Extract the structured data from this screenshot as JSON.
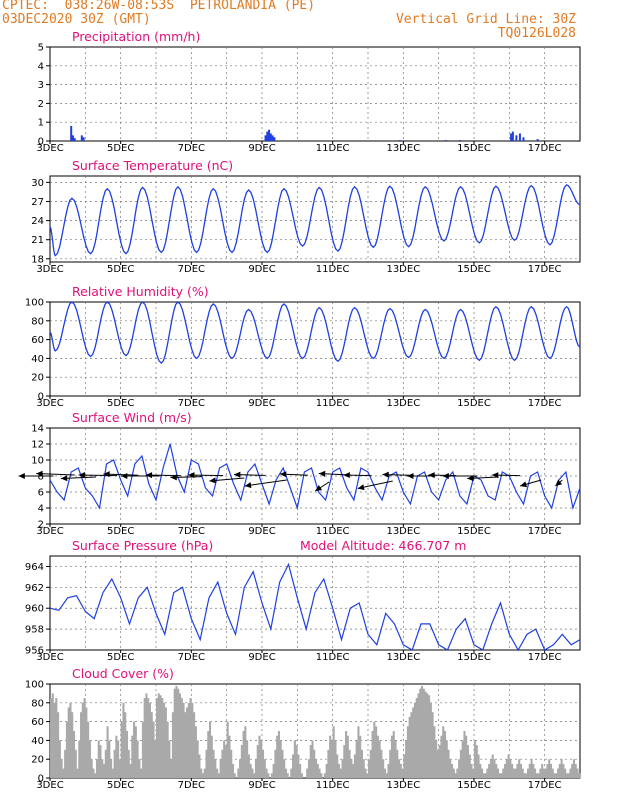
{
  "header": {
    "line1": "CPTEC:  038:26W-08:53S  PETROLANDIA (PE)",
    "line2": "03DEC2020 30Z (GMT)",
    "right1": "Vertical Grid Line: 30Z",
    "right2": "TQ0126L028"
  },
  "colors": {
    "title": "#e0107a",
    "header": "#e07b24",
    "line": "#1f3fe0",
    "cloud": "#a9a9a9"
  },
  "x_axis": {
    "ticks": [
      "3DEC",
      "5DEC",
      "7DEC",
      "9DEC",
      "11DEC",
      "13DEC",
      "15DEC",
      "17DEC"
    ],
    "tick_days": [
      3,
      5,
      7,
      9,
      11,
      13,
      15,
      17
    ],
    "range_days": [
      3,
      18.0
    ]
  },
  "chart_data": [
    {
      "type": "bar",
      "title": "Precipitation (mm/h)",
      "ylim": [
        0,
        5
      ],
      "yticks": [
        0,
        1,
        2,
        3,
        4,
        5
      ],
      "events": [
        {
          "day": 3.6,
          "value": 0.8
        },
        {
          "day": 3.65,
          "value": 0.3
        },
        {
          "day": 3.7,
          "value": 0.15
        },
        {
          "day": 3.9,
          "value": 0.3
        },
        {
          "day": 3.95,
          "value": 0.2
        },
        {
          "day": 9.1,
          "value": 0.3
        },
        {
          "day": 9.15,
          "value": 0.5
        },
        {
          "day": 9.2,
          "value": 0.6
        },
        {
          "day": 9.25,
          "value": 0.4
        },
        {
          "day": 9.3,
          "value": 0.3
        },
        {
          "day": 9.35,
          "value": 0.2
        },
        {
          "day": 12.9,
          "value": 0.05
        },
        {
          "day": 14.2,
          "value": 0.05
        },
        {
          "day": 14.6,
          "value": 0.05
        },
        {
          "day": 16.05,
          "value": 0.4
        },
        {
          "day": 16.1,
          "value": 0.5
        },
        {
          "day": 16.2,
          "value": 0.3
        },
        {
          "day": 16.3,
          "value": 0.4
        },
        {
          "day": 16.4,
          "value": 0.2
        },
        {
          "day": 16.8,
          "value": 0.1
        }
      ]
    },
    {
      "type": "line",
      "title": "Surface Temperature (nC)",
      "ylim": [
        17.5,
        31
      ],
      "yticks": [
        18,
        21,
        24,
        27,
        30
      ],
      "peaks": [
        27.5,
        29.0,
        29.2,
        29.3,
        29.0,
        28.8,
        29.0,
        29.2,
        29.3,
        29.4,
        29.3,
        29.3,
        29.4,
        29.5,
        29.6
      ],
      "troughs": [
        18.5,
        18.8,
        18.8,
        19.0,
        19.0,
        19.0,
        19.0,
        20.0,
        19.2,
        19.8,
        19.9,
        20.8,
        20.5,
        20.9,
        20.2
      ],
      "start_value": 23.0,
      "end_value": 26.5
    },
    {
      "type": "line",
      "title": "Relative Humidity (%)",
      "ylim": [
        0,
        100
      ],
      "yticks": [
        0,
        20,
        40,
        60,
        80,
        100
      ],
      "peaks": [
        100,
        100,
        100,
        100,
        98,
        92,
        98,
        94,
        94,
        93,
        92,
        92,
        95,
        95,
        95
      ],
      "troughs": [
        48,
        42,
        43,
        35,
        40,
        40,
        40,
        40,
        37,
        40,
        41,
        40,
        38,
        38,
        40
      ],
      "start_value": 68,
      "end_value": 52
    },
    {
      "type": "line",
      "title": "Surface Wind (m/s)",
      "ylim": [
        2,
        14
      ],
      "yticks": [
        2,
        4,
        6,
        8,
        10,
        12,
        14
      ],
      "x": [
        3.0,
        3.2,
        3.4,
        3.6,
        3.8,
        4.0,
        4.2,
        4.4,
        4.6,
        4.8,
        5.0,
        5.2,
        5.4,
        5.6,
        5.8,
        6.0,
        6.2,
        6.4,
        6.6,
        6.8,
        7.0,
        7.2,
        7.4,
        7.6,
        7.8,
        8.0,
        8.2,
        8.4,
        8.6,
        8.8,
        9.0,
        9.2,
        9.4,
        9.6,
        9.8,
        10.0,
        10.2,
        10.4,
        10.6,
        10.8,
        11.0,
        11.2,
        11.4,
        11.6,
        11.8,
        12.0,
        12.2,
        12.4,
        12.6,
        12.8,
        13.0,
        13.2,
        13.4,
        13.6,
        13.8,
        14.0,
        14.2,
        14.4,
        14.6,
        14.8,
        15.0,
        15.2,
        15.4,
        15.6,
        15.8,
        16.0,
        16.2,
        16.4,
        16.6,
        16.8,
        17.0,
        17.2,
        17.4,
        17.6,
        17.8,
        18.0
      ],
      "values": [
        7.5,
        6.0,
        5.0,
        8.5,
        9.0,
        6.5,
        5.5,
        4.0,
        9.5,
        10.0,
        7.5,
        5.5,
        9.5,
        10.5,
        7.0,
        5.0,
        9.0,
        12.0,
        8.0,
        6.0,
        10.0,
        9.5,
        6.5,
        5.5,
        9.0,
        9.5,
        7.0,
        5.0,
        8.5,
        9.5,
        7.0,
        4.5,
        7.5,
        9.0,
        6.5,
        4.0,
        8.5,
        9.0,
        6.0,
        5.0,
        8.5,
        9.0,
        6.5,
        5.0,
        9.0,
        8.5,
        6.5,
        5.0,
        8.0,
        8.5,
        6.0,
        4.5,
        8.0,
        8.5,
        6.0,
        5.0,
        7.5,
        8.5,
        5.5,
        4.5,
        8.0,
        7.5,
        5.5,
        5.0,
        8.5,
        8.0,
        6.0,
        4.5,
        8.0,
        8.5,
        5.5,
        4.0,
        7.5,
        8.5,
        4.0,
        6.5
      ],
      "arrows": [
        {
          "day": 3.1,
          "dx": -0.5,
          "dy": 0.0
        },
        {
          "day": 3.7,
          "dx": -0.55,
          "dy": 0.05
        },
        {
          "day": 4.3,
          "dx": -0.5,
          "dy": -0.05
        },
        {
          "day": 4.9,
          "dx": -0.55,
          "dy": 0.02
        },
        {
          "day": 5.5,
          "dx": -0.5,
          "dy": 0.04
        },
        {
          "day": 6.1,
          "dx": -0.55,
          "dy": 0.0
        },
        {
          "day": 6.7,
          "dx": -0.5,
          "dy": 0.02
        },
        {
          "day": 7.3,
          "dx": -0.45,
          "dy": -0.03
        },
        {
          "day": 7.9,
          "dx": -0.5,
          "dy": 0.02
        },
        {
          "day": 8.5,
          "dx": -0.5,
          "dy": -0.1
        },
        {
          "day": 9.1,
          "dx": -0.45,
          "dy": 0.03
        },
        {
          "day": 9.7,
          "dx": -0.6,
          "dy": -0.2
        },
        {
          "day": 10.3,
          "dx": -0.4,
          "dy": 0.04
        },
        {
          "day": 10.9,
          "dx": -0.2,
          "dy": -0.3
        },
        {
          "day": 11.5,
          "dx": -0.45,
          "dy": 0.05
        },
        {
          "day": 12.1,
          "dx": -0.4,
          "dy": 0.02
        },
        {
          "day": 12.7,
          "dx": -0.5,
          "dy": -0.25
        },
        {
          "day": 13.3,
          "dx": -0.45,
          "dy": 0.03
        },
        {
          "day": 13.9,
          "dx": -0.4,
          "dy": 0.0
        },
        {
          "day": 14.5,
          "dx": -0.4,
          "dy": 0.02
        },
        {
          "day": 15.1,
          "dx": -0.5,
          "dy": 0.0
        },
        {
          "day": 15.7,
          "dx": -0.45,
          "dy": -0.05
        },
        {
          "day": 16.3,
          "dx": -0.4,
          "dy": 0.02
        },
        {
          "day": 16.9,
          "dx": -0.3,
          "dy": -0.2
        },
        {
          "day": 17.5,
          "dx": -0.1,
          "dy": -0.2
        }
      ]
    },
    {
      "type": "line",
      "title": "Surface Pressure (hPa)",
      "subtitle": "Model Altitude: 466.707 m",
      "ylim": [
        956,
        965
      ],
      "yticks": [
        956,
        958,
        960,
        962,
        964
      ],
      "x": [
        3.0,
        3.25,
        3.5,
        3.75,
        4.0,
        4.25,
        4.5,
        4.75,
        5.0,
        5.25,
        5.5,
        5.75,
        6.0,
        6.25,
        6.5,
        6.75,
        7.0,
        7.25,
        7.5,
        7.75,
        8.0,
        8.25,
        8.5,
        8.75,
        9.0,
        9.25,
        9.5,
        9.75,
        10.0,
        10.25,
        10.5,
        10.75,
        11.0,
        11.25,
        11.5,
        11.75,
        12.0,
        12.25,
        12.5,
        12.75,
        13.0,
        13.25,
        13.5,
        13.75,
        14.0,
        14.25,
        14.5,
        14.75,
        15.0,
        15.25,
        15.5,
        15.75,
        16.0,
        16.25,
        16.5,
        16.75,
        17.0,
        17.25,
        17.5,
        17.75,
        18.0
      ],
      "values": [
        960.0,
        959.8,
        961.0,
        961.2,
        959.7,
        959.0,
        961.5,
        962.8,
        961.0,
        958.5,
        961.0,
        962.0,
        959.5,
        957.5,
        961.5,
        962.0,
        959.0,
        957.0,
        961.0,
        962.5,
        959.5,
        957.5,
        962.0,
        963.5,
        960.5,
        958.0,
        962.5,
        964.2,
        961.0,
        958.0,
        961.5,
        962.8,
        960.0,
        957.0,
        960.0,
        960.5,
        957.5,
        956.5,
        959.5,
        958.5,
        956.5,
        956.0,
        958.5,
        958.5,
        956.5,
        956.0,
        958.0,
        959.0,
        956.5,
        956.0,
        958.5,
        960.5,
        957.5,
        956.0,
        957.5,
        958.0,
        956.0,
        956.5,
        957.5,
        956.5,
        957.0
      ]
    },
    {
      "type": "bar",
      "title": "Cloud Cover (%)",
      "ylim": [
        0,
        100
      ],
      "yticks": [
        0,
        20,
        40,
        60,
        80,
        100
      ],
      "day_levels": [
        [
          85,
          90,
          80,
          85,
          70,
          40,
          20,
          10,
          30,
          60,
          75,
          80,
          70,
          50,
          30,
          10,
          40,
          70,
          80,
          85
        ],
        [
          75,
          60,
          40,
          20,
          10,
          5,
          20,
          40,
          35,
          20,
          15,
          30,
          55,
          40,
          20,
          10,
          30,
          45,
          40,
          20
        ],
        [
          60,
          80,
          70,
          50,
          30,
          15,
          45,
          60,
          55,
          40,
          20,
          10,
          60,
          85,
          90,
          85,
          80,
          70,
          60,
          40
        ],
        [
          85,
          90,
          88,
          85,
          80,
          75,
          60,
          40,
          20,
          70,
          95,
          98,
          95,
          90,
          85,
          80,
          70,
          75,
          80,
          85
        ],
        [
          80,
          70,
          55,
          40,
          25,
          10,
          5,
          10,
          30,
          50,
          60,
          45,
          30,
          20,
          10,
          5,
          20,
          30,
          40,
          35
        ],
        [
          60,
          45,
          30,
          15,
          5,
          0,
          10,
          20,
          35,
          50,
          55,
          40,
          25,
          15,
          10,
          5,
          20,
          35,
          45,
          40
        ],
        [
          30,
          20,
          10,
          5,
          0,
          5,
          15,
          30,
          45,
          50,
          40,
          30,
          20,
          10,
          5,
          0,
          10,
          25,
          40,
          35
        ],
        [
          25,
          15,
          5,
          0,
          0,
          10,
          20,
          35,
          40,
          30,
          20,
          15,
          10,
          5,
          0,
          5,
          15,
          30,
          45,
          40
        ],
        [
          55,
          40,
          25,
          15,
          10,
          20,
          35,
          50,
          45,
          30,
          20,
          15,
          25,
          40,
          55,
          45,
          30,
          20,
          10,
          5
        ],
        [
          20,
          30,
          50,
          60,
          55,
          45,
          40,
          30,
          20,
          10,
          5,
          15,
          30,
          45,
          50,
          40,
          30,
          20,
          15,
          10
        ],
        [
          25,
          40,
          55,
          65,
          70,
          75,
          80,
          85,
          90,
          95,
          98,
          95,
          92,
          90,
          88,
          80,
          70,
          55,
          40,
          30
        ],
        [
          35,
          45,
          55,
          50,
          40,
          30,
          20,
          15,
          10,
          5,
          10,
          20,
          30,
          40,
          50,
          45,
          35,
          25,
          15,
          10
        ],
        [
          40,
          35,
          25,
          15,
          10,
          5,
          5,
          10,
          15,
          20,
          25,
          20,
          15,
          10,
          5,
          5,
          10,
          15,
          20,
          25
        ],
        [
          20,
          15,
          10,
          10,
          15,
          20,
          15,
          10,
          5,
          5,
          10,
          15,
          20,
          15,
          10,
          5,
          5,
          10,
          15,
          10
        ],
        [
          10,
          15,
          20,
          15,
          10,
          5,
          5,
          10,
          15,
          20,
          15,
          10,
          5,
          5,
          10,
          15,
          20,
          15,
          10,
          5
        ]
      ]
    }
  ]
}
